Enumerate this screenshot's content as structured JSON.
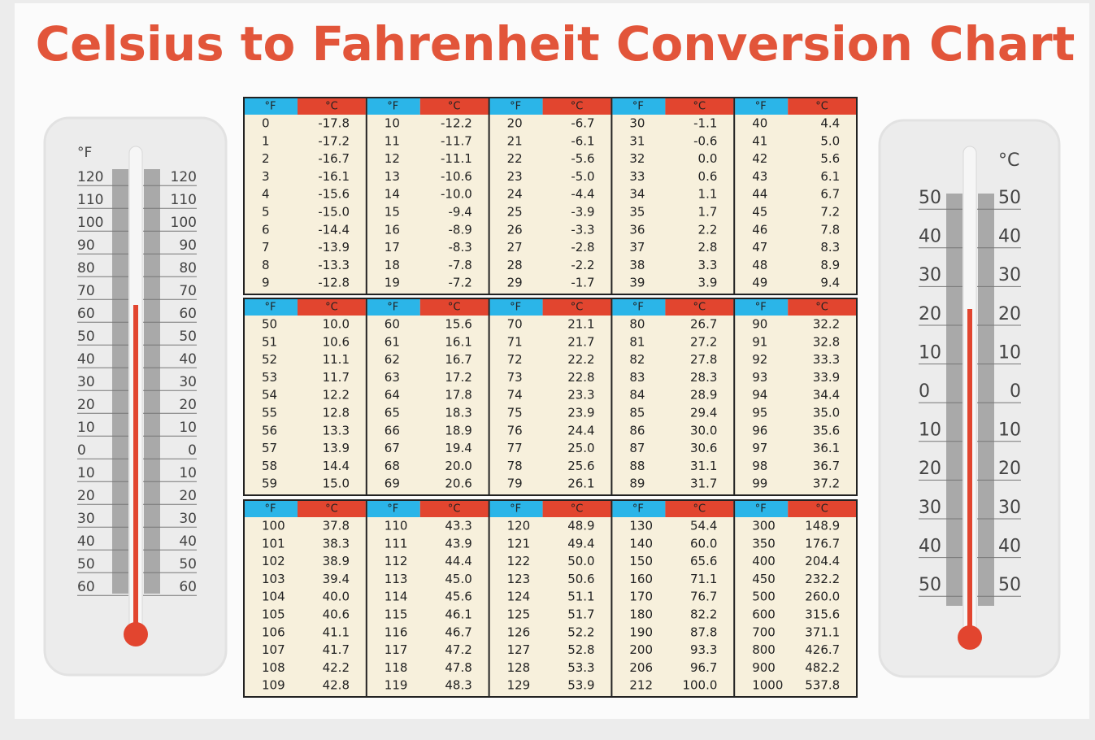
{
  "title": "Celsius to Fahrenheit Conversion Chart",
  "table": {
    "headers": [
      "°F",
      "°C"
    ],
    "blocks": [
      {
        "columns": [
          {
            "f": [
              0,
              1,
              2,
              3,
              4,
              5,
              6,
              7,
              8,
              9
            ],
            "c": [
              "-17.8",
              "-17.2",
              "-16.7",
              "-16.1",
              "-15.6",
              "-15.0",
              "-14.4",
              "-13.9",
              "-13.3",
              "-12.8"
            ]
          },
          {
            "f": [
              10,
              11,
              12,
              13,
              14,
              15,
              16,
              17,
              18,
              19
            ],
            "c": [
              "-12.2",
              "-11.7",
              "-11.1",
              "-10.6",
              "-10.0",
              "-9.4",
              "-8.9",
              "-8.3",
              "-7.8",
              "-7.2"
            ]
          },
          {
            "f": [
              20,
              21,
              22,
              23,
              24,
              25,
              26,
              27,
              28,
              29
            ],
            "c": [
              "-6.7",
              "-6.1",
              "-5.6",
              "-5.0",
              "-4.4",
              "-3.9",
              "-3.3",
              "-2.8",
              "-2.2",
              "-1.7"
            ]
          },
          {
            "f": [
              30,
              31,
              32,
              33,
              34,
              35,
              36,
              37,
              38,
              39
            ],
            "c": [
              "-1.1",
              "-0.6",
              "0.0",
              "0.6",
              "1.1",
              "1.7",
              "2.2",
              "2.8",
              "3.3",
              "3.9"
            ]
          },
          {
            "f": [
              40,
              41,
              42,
              43,
              44,
              45,
              46,
              47,
              48,
              49
            ],
            "c": [
              "4.4",
              "5.0",
              "5.6",
              "6.1",
              "6.7",
              "7.2",
              "7.8",
              "8.3",
              "8.9",
              "9.4"
            ]
          }
        ]
      },
      {
        "columns": [
          {
            "f": [
              50,
              51,
              52,
              53,
              54,
              55,
              56,
              57,
              58,
              59
            ],
            "c": [
              "10.0",
              "10.6",
              "11.1",
              "11.7",
              "12.2",
              "12.8",
              "13.3",
              "13.9",
              "14.4",
              "15.0"
            ]
          },
          {
            "f": [
              60,
              61,
              62,
              63,
              64,
              65,
              66,
              67,
              68,
              69
            ],
            "c": [
              "15.6",
              "16.1",
              "16.7",
              "17.2",
              "17.8",
              "18.3",
              "18.9",
              "19.4",
              "20.0",
              "20.6"
            ]
          },
          {
            "f": [
              70,
              71,
              72,
              73,
              74,
              75,
              76,
              77,
              78,
              79
            ],
            "c": [
              "21.1",
              "21.7",
              "22.2",
              "22.8",
              "23.3",
              "23.9",
              "24.4",
              "25.0",
              "25.6",
              "26.1"
            ]
          },
          {
            "f": [
              80,
              81,
              82,
              83,
              84,
              85,
              86,
              87,
              88,
              89
            ],
            "c": [
              "26.7",
              "27.2",
              "27.8",
              "28.3",
              "28.9",
              "29.4",
              "30.0",
              "30.6",
              "31.1",
              "31.7"
            ]
          },
          {
            "f": [
              90,
              91,
              92,
              93,
              94,
              95,
              96,
              97,
              98,
              99
            ],
            "c": [
              "32.2",
              "32.8",
              "33.3",
              "33.9",
              "34.4",
              "35.0",
              "35.6",
              "36.1",
              "36.7",
              "37.2"
            ]
          }
        ]
      },
      {
        "columns": [
          {
            "f": [
              100,
              101,
              102,
              103,
              104,
              105,
              106,
              107,
              108,
              109
            ],
            "c": [
              "37.8",
              "38.3",
              "38.9",
              "39.4",
              "40.0",
              "40.6",
              "41.1",
              "41.7",
              "42.2",
              "42.8"
            ]
          },
          {
            "f": [
              110,
              111,
              112,
              113,
              114,
              115,
              116,
              117,
              118,
              119
            ],
            "c": [
              "43.3",
              "43.9",
              "44.4",
              "45.0",
              "45.6",
              "46.1",
              "46.7",
              "47.2",
              "47.8",
              "48.3"
            ]
          },
          {
            "f": [
              120,
              121,
              122,
              123,
              124,
              125,
              126,
              127,
              128,
              129
            ],
            "c": [
              "48.9",
              "49.4",
              "50.0",
              "50.6",
              "51.1",
              "51.7",
              "52.2",
              "52.8",
              "53.3",
              "53.9"
            ]
          },
          {
            "f": [
              130,
              140,
              150,
              160,
              170,
              180,
              190,
              200,
              206,
              212
            ],
            "c": [
              "54.4",
              "60.0",
              "65.6",
              "71.1",
              "76.7",
              "82.2",
              "87.8",
              "93.3",
              "96.7",
              "100.0"
            ]
          },
          {
            "f": [
              300,
              350,
              400,
              450,
              500,
              600,
              700,
              800,
              900,
              1000
            ],
            "c": [
              "148.9",
              "176.7",
              "204.4",
              "232.2",
              "260.0",
              "315.6",
              "371.1",
              "426.7",
              "482.2",
              "537.8"
            ]
          }
        ]
      }
    ]
  },
  "thermometers": [
    {
      "unit": "°F",
      "labels": [
        "120",
        "110",
        "100",
        "90",
        "80",
        "70",
        "60",
        "50",
        "40",
        "30",
        "20",
        "10",
        "0",
        "10",
        "20",
        "30",
        "40",
        "50",
        "60"
      ]
    },
    {
      "unit": "°C",
      "labels": [
        "50",
        "40",
        "30",
        "20",
        "10",
        "0",
        "10",
        "20",
        "30",
        "40",
        "50"
      ]
    }
  ]
}
